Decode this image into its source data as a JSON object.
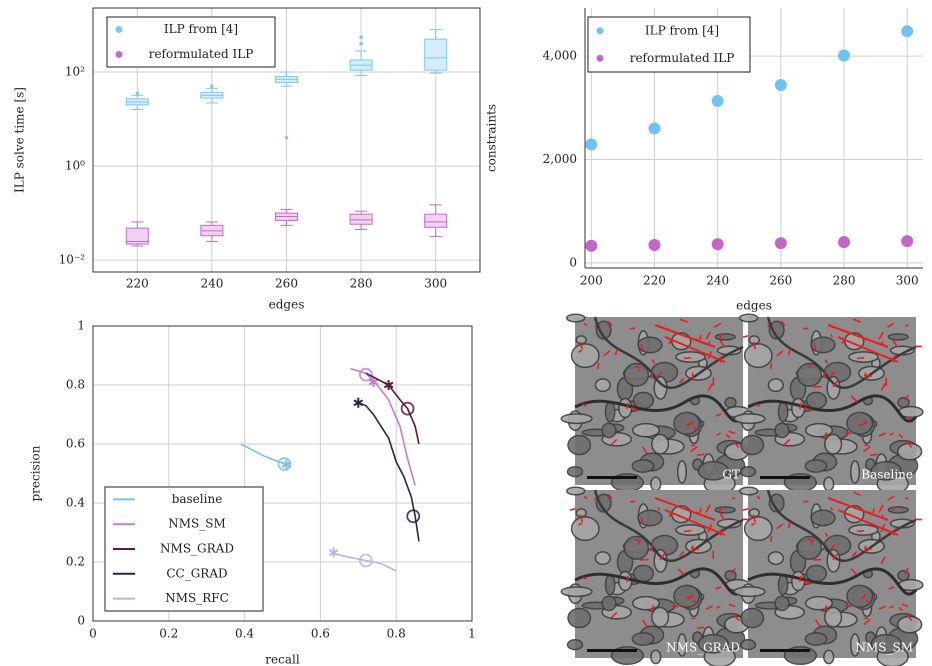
{
  "chart_data": [
    {
      "type": "box",
      "y_label": "ILP solve time [s]",
      "x_label": "edges",
      "categories": [
        "220",
        "240",
        "260",
        "280",
        "300"
      ],
      "log_y": true,
      "ylim": [
        0.0056,
        2300
      ],
      "yticks": [
        {
          "value": 0.01,
          "label": "10⁻²"
        },
        {
          "value": 1,
          "label": "10⁰"
        },
        {
          "value": 100,
          "label": "10²"
        }
      ],
      "grid": true,
      "legend": "upper left",
      "series": [
        {
          "name": "ILP from [4]",
          "color": "#7cc8ef",
          "fill": "#d5edfa",
          "min": [
            16,
            22,
            50,
            85,
            95
          ],
          "q1": [
            20,
            28,
            60,
            110,
            110
          ],
          "median": [
            23,
            32,
            70,
            140,
            200
          ],
          "q3": [
            27,
            37,
            80,
            180,
            500
          ],
          "max": [
            32,
            45,
            100,
            280,
            800
          ],
          "outliers": [
            [
              35
            ],
            [
              50
            ],
            [
              4
            ],
            [
              400,
              550
            ],
            []
          ]
        },
        {
          "name": "reformulated ILP",
          "color": "#c46cc6",
          "fill": "#efd2ef",
          "min": [
            0.02,
            0.025,
            0.055,
            0.045,
            0.032
          ],
          "q1": [
            0.022,
            0.033,
            0.07,
            0.058,
            0.05
          ],
          "median": [
            0.025,
            0.042,
            0.085,
            0.072,
            0.065
          ],
          "q3": [
            0.048,
            0.055,
            0.1,
            0.095,
            0.095
          ],
          "max": [
            0.065,
            0.065,
            0.12,
            0.11,
            0.15
          ],
          "outliers": [
            [],
            [],
            [],
            [],
            []
          ]
        }
      ]
    },
    {
      "type": "scatter",
      "y_label": "constraints",
      "x_label": "edges",
      "x": [
        200,
        220,
        240,
        260,
        280,
        300
      ],
      "xlim": [
        198,
        305
      ],
      "xticks": [
        200,
        220,
        240,
        260,
        280,
        300
      ],
      "ylim": [
        -100,
        4930
      ],
      "yticks": [
        0,
        {
          "value": 2000,
          "label": "2,000"
        },
        {
          "value": 4000,
          "label": "4,000"
        }
      ],
      "grid": true,
      "legend": "upper left",
      "series": [
        {
          "name": "ILP from [4]",
          "color": "#6fc3f2",
          "values": [
            2290,
            2600,
            3130,
            3440,
            4010,
            4480
          ]
        },
        {
          "name": "reformulated ILP",
          "color": "#c466c6",
          "values": [
            330,
            345,
            360,
            380,
            400,
            420
          ]
        }
      ]
    },
    {
      "type": "line",
      "y_label": "precision",
      "x_label": "recall",
      "xlim": [
        0,
        1
      ],
      "xticks": [
        0,
        0.2,
        0.4,
        0.6,
        0.8,
        1
      ],
      "ylim": [
        0,
        1
      ],
      "yticks": [
        0,
        0.2,
        0.4,
        0.6,
        0.8,
        1
      ],
      "grid": true,
      "legend": "lower left",
      "series": [
        {
          "name": "baseline",
          "color": "#7cc0e8",
          "x": [
            0.39,
            0.42,
            0.45,
            0.48,
            0.5,
            0.52
          ],
          "values": [
            0.6,
            0.58,
            0.56,
            0.545,
            0.535,
            0.525
          ],
          "star": [
            0.51,
            0.53
          ],
          "circle": [
            0.505,
            0.532
          ]
        },
        {
          "name": "NMS_SM",
          "color": "#c57fd0",
          "x": [
            0.68,
            0.72,
            0.75,
            0.78,
            0.81,
            0.83,
            0.85
          ],
          "values": [
            0.855,
            0.84,
            0.8,
            0.75,
            0.66,
            0.55,
            0.46
          ],
          "star": [
            0.74,
            0.81
          ],
          "circle": [
            0.72,
            0.835
          ]
        },
        {
          "name": "NMS_GRAD",
          "color": "#5a1a3e",
          "x": [
            0.72,
            0.78,
            0.81,
            0.83,
            0.85,
            0.86
          ],
          "values": [
            0.84,
            0.8,
            0.75,
            0.72,
            0.66,
            0.6
          ],
          "star": [
            0.78,
            0.8
          ],
          "circle": [
            0.83,
            0.72
          ]
        },
        {
          "name": "CC_GRAD",
          "color": "#2a2546",
          "x": [
            0.7,
            0.72,
            0.74,
            0.76,
            0.78,
            0.79,
            0.8,
            0.82,
            0.84,
            0.85,
            0.86
          ],
          "values": [
            0.74,
            0.73,
            0.7,
            0.66,
            0.62,
            0.58,
            0.54,
            0.49,
            0.42,
            0.355,
            0.27
          ],
          "star": [
            0.7,
            0.74
          ],
          "circle": [
            0.845,
            0.355
          ]
        },
        {
          "name": "NMS_RFC",
          "color": "#b9b4e0",
          "x": [
            0.63,
            0.68,
            0.72,
            0.76,
            0.8
          ],
          "values": [
            0.23,
            0.215,
            0.205,
            0.195,
            0.17
          ],
          "star": [
            0.635,
            0.232
          ],
          "circle": [
            0.72,
            0.205
          ]
        }
      ]
    }
  ],
  "panels": {
    "labels": [
      "GT",
      "Baseline",
      "NMS_GRAD",
      "NMS_SM"
    ]
  }
}
